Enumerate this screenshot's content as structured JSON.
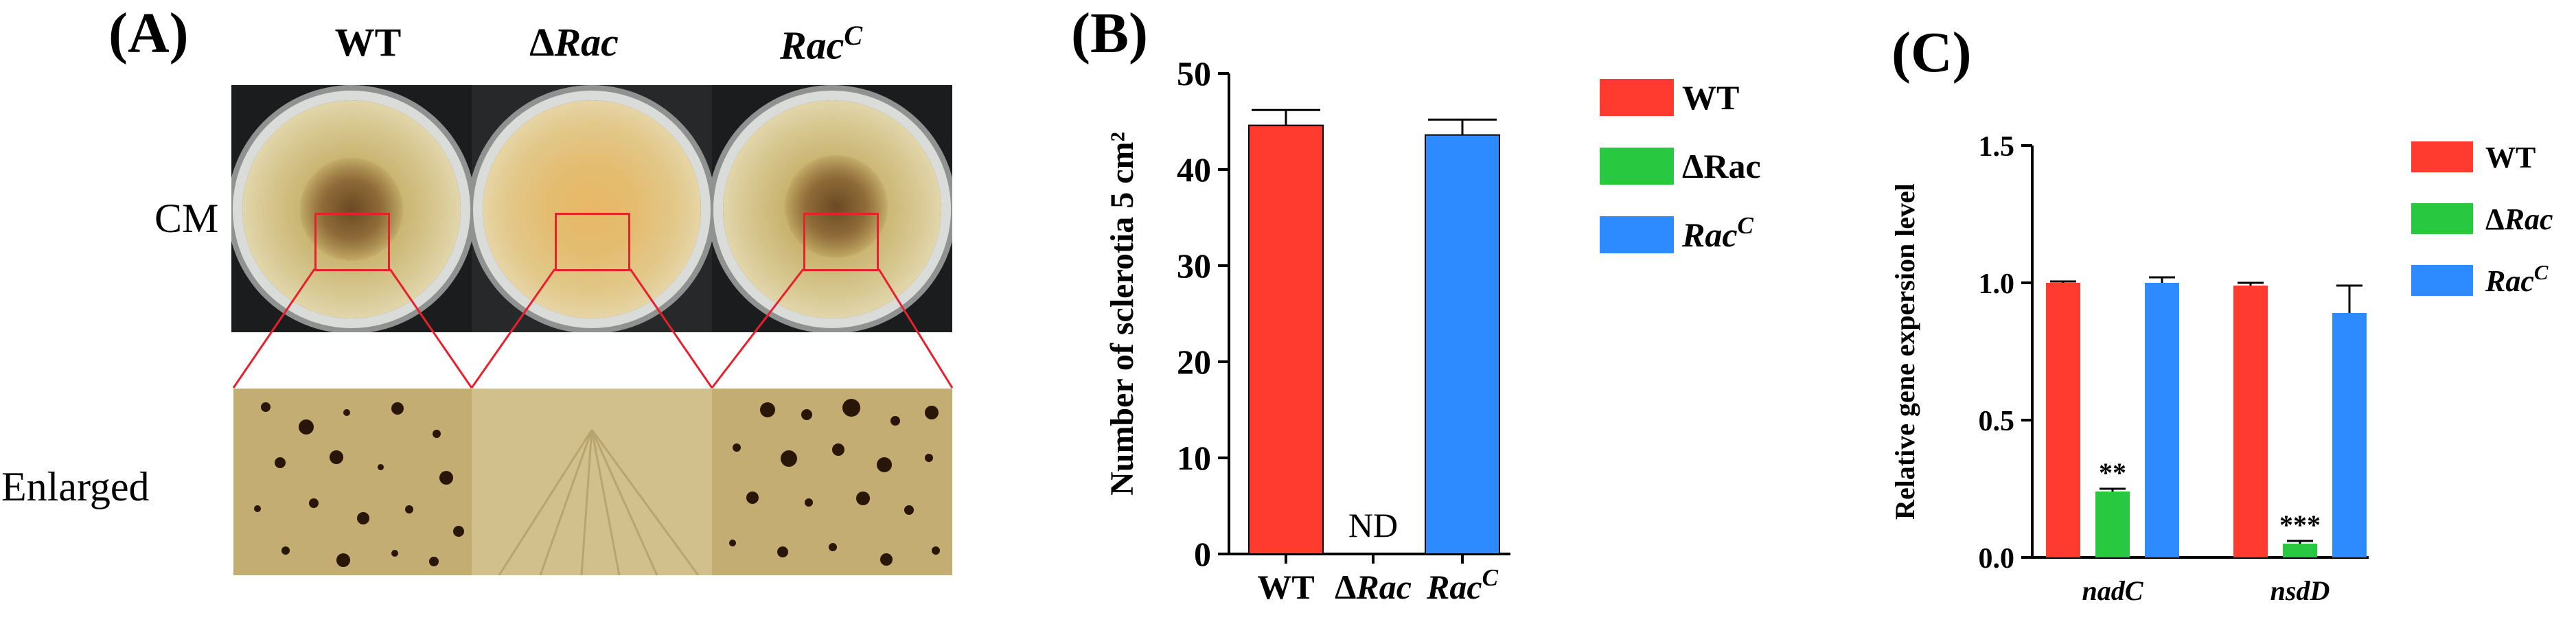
{
  "panel_a": {
    "letter": "(A)",
    "strains": [
      {
        "prefix": "",
        "name": "WT",
        "sup": ""
      },
      {
        "prefix": "Δ",
        "name": "Rac",
        "sup": ""
      },
      {
        "prefix": "",
        "name": "Rac",
        "sup": "C"
      }
    ],
    "row_labels": [
      "CM",
      "Enlarged"
    ]
  },
  "chart_data": [
    {
      "type": "bar",
      "panel": "(B)",
      "title": "",
      "categories": [
        "WT",
        "ΔRac",
        "RacC"
      ],
      "values": [
        44.6,
        0,
        43.6
      ],
      "errors": [
        1.6,
        0,
        1.6
      ],
      "colors": [
        "#ff3b30",
        "#28c940",
        "#2e8bff"
      ],
      "bar_annotations": [
        "",
        "ND",
        ""
      ],
      "ylabel": "Number of sclerotia 5 cm²",
      "ylim": [
        0,
        50
      ],
      "yticks": [
        0,
        10,
        20,
        30,
        40,
        50
      ],
      "legend": [
        "WT",
        "ΔRac",
        "RacC"
      ],
      "legend_position": "right"
    },
    {
      "type": "bar",
      "panel": "(C)",
      "title": "",
      "categories": [
        "nadC",
        "nsdD"
      ],
      "series": [
        {
          "name": "WT",
          "color": "#ff3b30",
          "values": [
            1.0,
            0.99
          ],
          "errors": [
            0.005,
            0.01
          ],
          "stars": [
            "",
            ""
          ]
        },
        {
          "name": "ΔRac",
          "color": "#28c940",
          "values": [
            0.24,
            0.05
          ],
          "errors": [
            0.01,
            0.01
          ],
          "stars": [
            "**",
            "***"
          ]
        },
        {
          "name": "RacC",
          "color": "#2e8bff",
          "values": [
            1.0,
            0.89
          ],
          "errors": [
            0.02,
            0.1
          ],
          "stars": [
            "",
            ""
          ]
        }
      ],
      "ylabel": "Relative gene expersion level",
      "ylim": [
        0,
        1.5
      ],
      "yticks": [
        "0.0",
        "0.5",
        "1.0",
        "1.5"
      ],
      "legend_position": "right"
    }
  ]
}
